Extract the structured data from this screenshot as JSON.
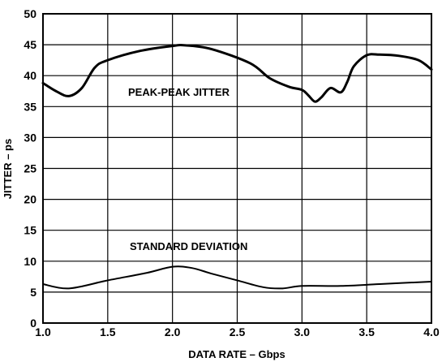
{
  "chart_data": {
    "type": "line",
    "xlabel": "DATA RATE – Gbps",
    "ylabel": "JITTER – ps",
    "xlim": [
      1.0,
      4.0
    ],
    "ylim": [
      0,
      50
    ],
    "xticks": [
      "1.0",
      "1.5",
      "2.0",
      "2.5",
      "3.0",
      "3.5",
      "4.0"
    ],
    "yticks": [
      "0",
      "5",
      "10",
      "15",
      "20",
      "25",
      "30",
      "35",
      "40",
      "45",
      "50"
    ],
    "grid": true,
    "annotations": [
      "PEAK-PEAK JITTER",
      "STANDARD DEVIATION"
    ],
    "series": [
      {
        "x": [
          1.0,
          1.1,
          1.2,
          1.3,
          1.4,
          1.5,
          1.75,
          2.0,
          2.1,
          2.3,
          2.6,
          2.75,
          2.9,
          3.0,
          3.05,
          3.1,
          3.15,
          3.22,
          3.3,
          3.35,
          3.4,
          3.5,
          3.6,
          3.75,
          3.9,
          4.0
        ],
        "y": [
          38.8,
          37.5,
          36.7,
          38.0,
          41.3,
          42.5,
          44.0,
          44.8,
          44.9,
          44.3,
          42.0,
          39.6,
          38.2,
          37.7,
          36.8,
          35.8,
          36.5,
          38.0,
          37.3,
          39.0,
          41.5,
          43.3,
          43.4,
          43.2,
          42.5,
          41.0
        ],
        "color": "#000000"
      },
      {
        "x": [
          1.0,
          1.2,
          1.5,
          1.8,
          2.0,
          2.15,
          2.3,
          2.5,
          2.7,
          2.85,
          3.0,
          3.3,
          3.6,
          4.0
        ],
        "y": [
          6.3,
          5.6,
          6.9,
          8.1,
          9.1,
          8.9,
          8.0,
          6.9,
          5.8,
          5.6,
          6.0,
          6.0,
          6.3,
          6.7
        ],
        "color": "#000000"
      }
    ]
  }
}
